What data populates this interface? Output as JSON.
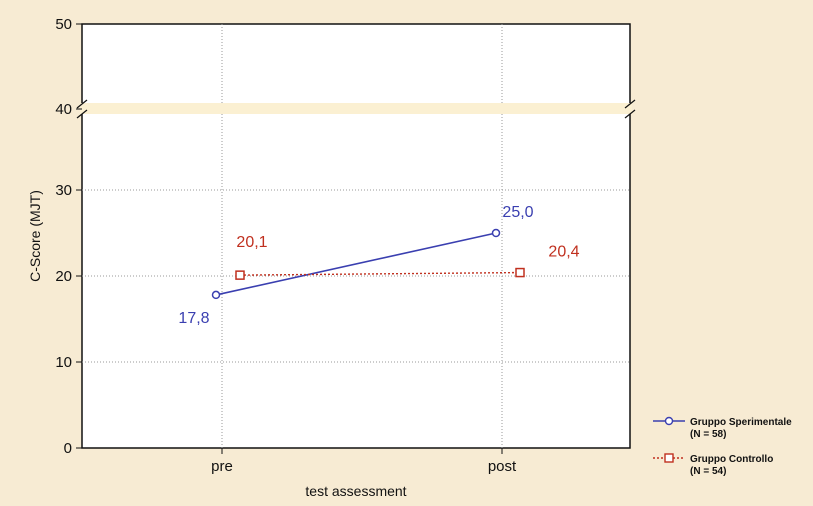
{
  "chart_data": {
    "type": "line",
    "categories": [
      "pre",
      "post"
    ],
    "xlabel": "test assessment",
    "ylabel": "C-Score (MJT)",
    "ylim": [
      0,
      50
    ],
    "yticks": [
      "0",
      "10",
      "20",
      "30",
      "40",
      "50"
    ],
    "axis_break_between": [
      30,
      40
    ],
    "grid": true,
    "legend_position": "bottom-right",
    "series": [
      {
        "name": "Gruppo Sperimentale",
        "name_line2": "(N = 58)",
        "values": [
          17.8,
          25.0
        ],
        "value_labels": [
          "17,8",
          "25,0"
        ],
        "color": "#3a3fb0",
        "line_style": "solid",
        "marker": "circle"
      },
      {
        "name": "Gruppo Controllo",
        "name_line2": "(N = 54)",
        "values": [
          20.1,
          20.4
        ],
        "value_labels": [
          "20,1",
          "20,4"
        ],
        "color": "#c0301f",
        "line_style": "dotted",
        "marker": "square"
      }
    ]
  }
}
